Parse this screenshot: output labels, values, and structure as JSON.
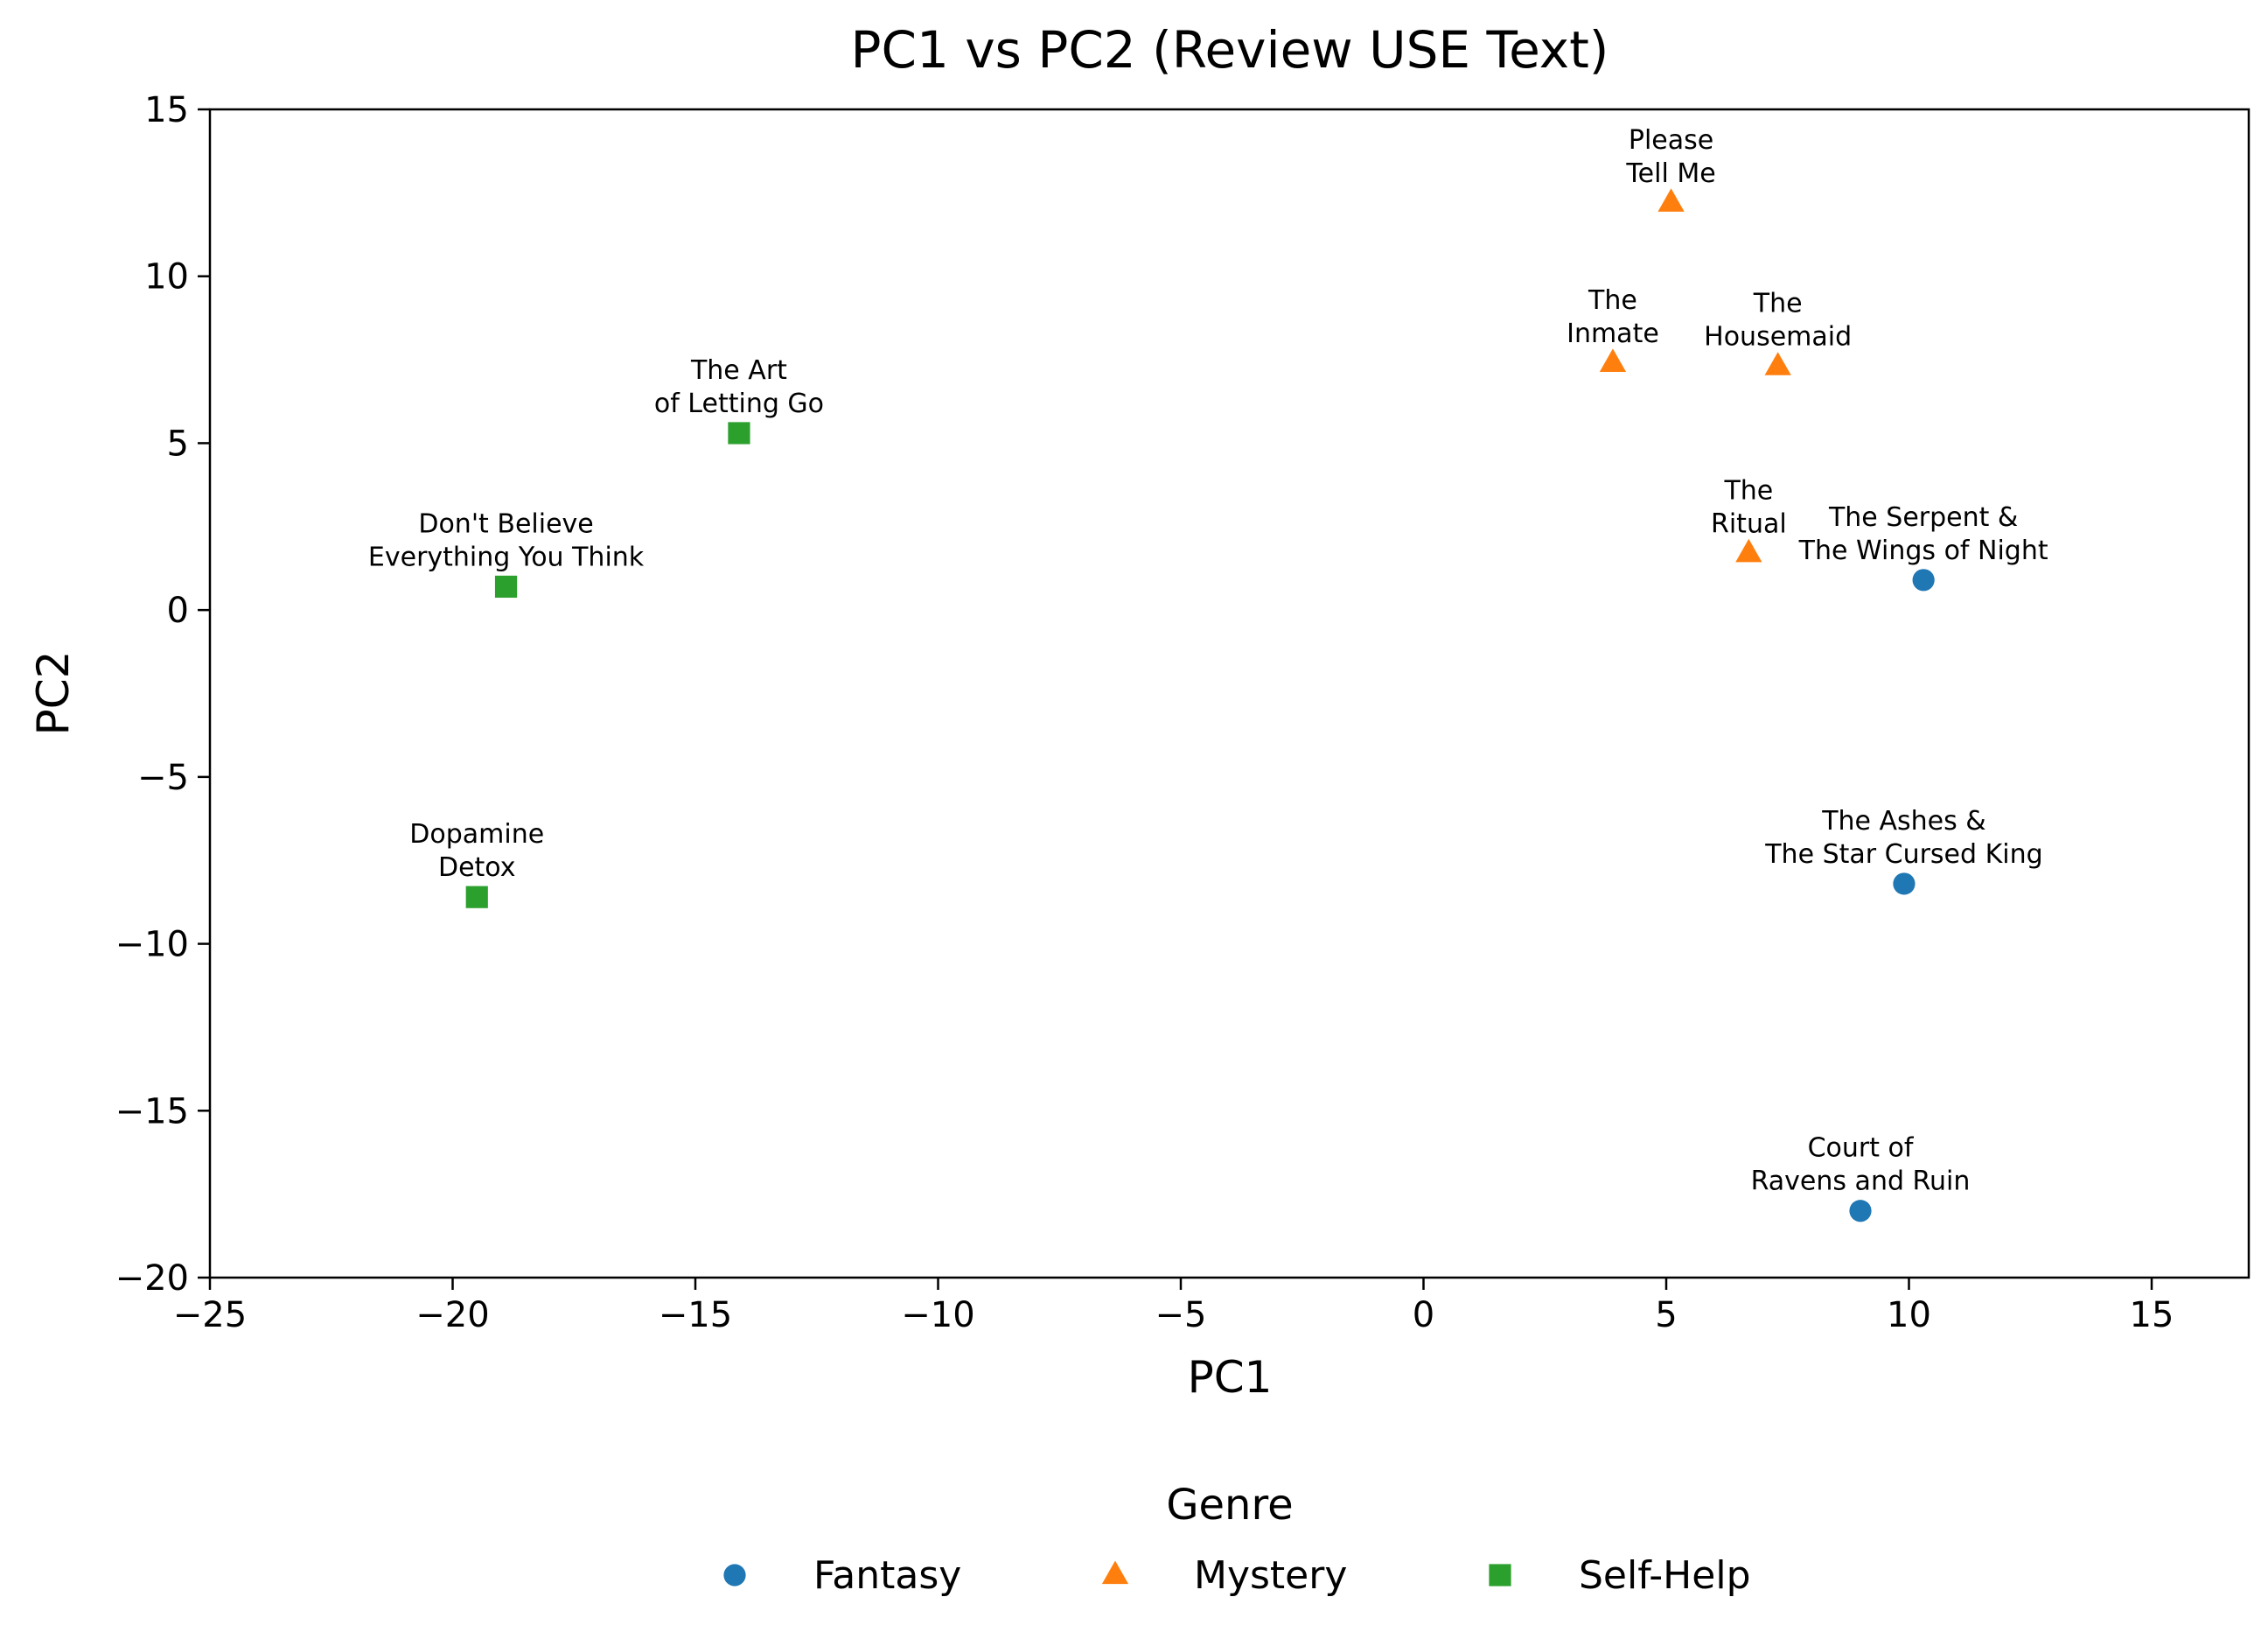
{
  "chart_data": {
    "type": "scatter",
    "title": "PC1 vs PC2 (Review USE Text)",
    "xlabel": "PC1",
    "ylabel": "PC2",
    "xlim": [
      -25,
      17
    ],
    "ylim": [
      -20,
      15
    ],
    "xticks": [
      -25,
      -20,
      -15,
      -10,
      -5,
      0,
      5,
      10,
      15
    ],
    "yticks": [
      -20,
      -15,
      -10,
      -5,
      0,
      5,
      10,
      15
    ],
    "xtick_labels": [
      "−25",
      "−20",
      "−15",
      "−10",
      "−5",
      "0",
      "5",
      "10",
      "15"
    ],
    "ytick_labels": [
      "−20",
      "−15",
      "−10",
      "−5",
      "0",
      "5",
      "10",
      "15"
    ],
    "grid": false,
    "legend": {
      "title": "Genre",
      "placement": "bottom-center"
    },
    "series": [
      {
        "name": "Fantasy",
        "marker": "circle",
        "color": "#1f77b4",
        "points": [
          {
            "x": 10.3,
            "y": 0.9,
            "label": [
              "The Serpent &",
              "The Wings of Night"
            ]
          },
          {
            "x": 9.9,
            "y": -8.2,
            "label": [
              "The Ashes &",
              "The Star Cursed King"
            ]
          },
          {
            "x": 9.0,
            "y": -18.0,
            "label": [
              "Court of",
              "Ravens and Ruin"
            ]
          }
        ]
      },
      {
        "name": "Mystery",
        "marker": "triangle",
        "color": "#ff7f0e",
        "points": [
          {
            "x": 5.1,
            "y": 12.2,
            "label": [
              "Please",
              "Tell Me"
            ]
          },
          {
            "x": 3.9,
            "y": 7.4,
            "label": [
              "The",
              "Inmate"
            ]
          },
          {
            "x": 7.3,
            "y": 7.3,
            "label": [
              "The",
              "Housemaid"
            ]
          },
          {
            "x": 6.7,
            "y": 1.7,
            "label": [
              "The",
              "Ritual"
            ]
          }
        ]
      },
      {
        "name": "Self-Help",
        "marker": "square",
        "color": "#2ca02c",
        "points": [
          {
            "x": -14.1,
            "y": 5.3,
            "label": [
              "The Art",
              "of Letting Go"
            ]
          },
          {
            "x": -18.9,
            "y": 0.7,
            "label": [
              "Don't Believe",
              "Everything You Think"
            ]
          },
          {
            "x": -19.5,
            "y": -8.6,
            "label": [
              "Dopamine",
              "Detox"
            ]
          }
        ]
      }
    ]
  }
}
